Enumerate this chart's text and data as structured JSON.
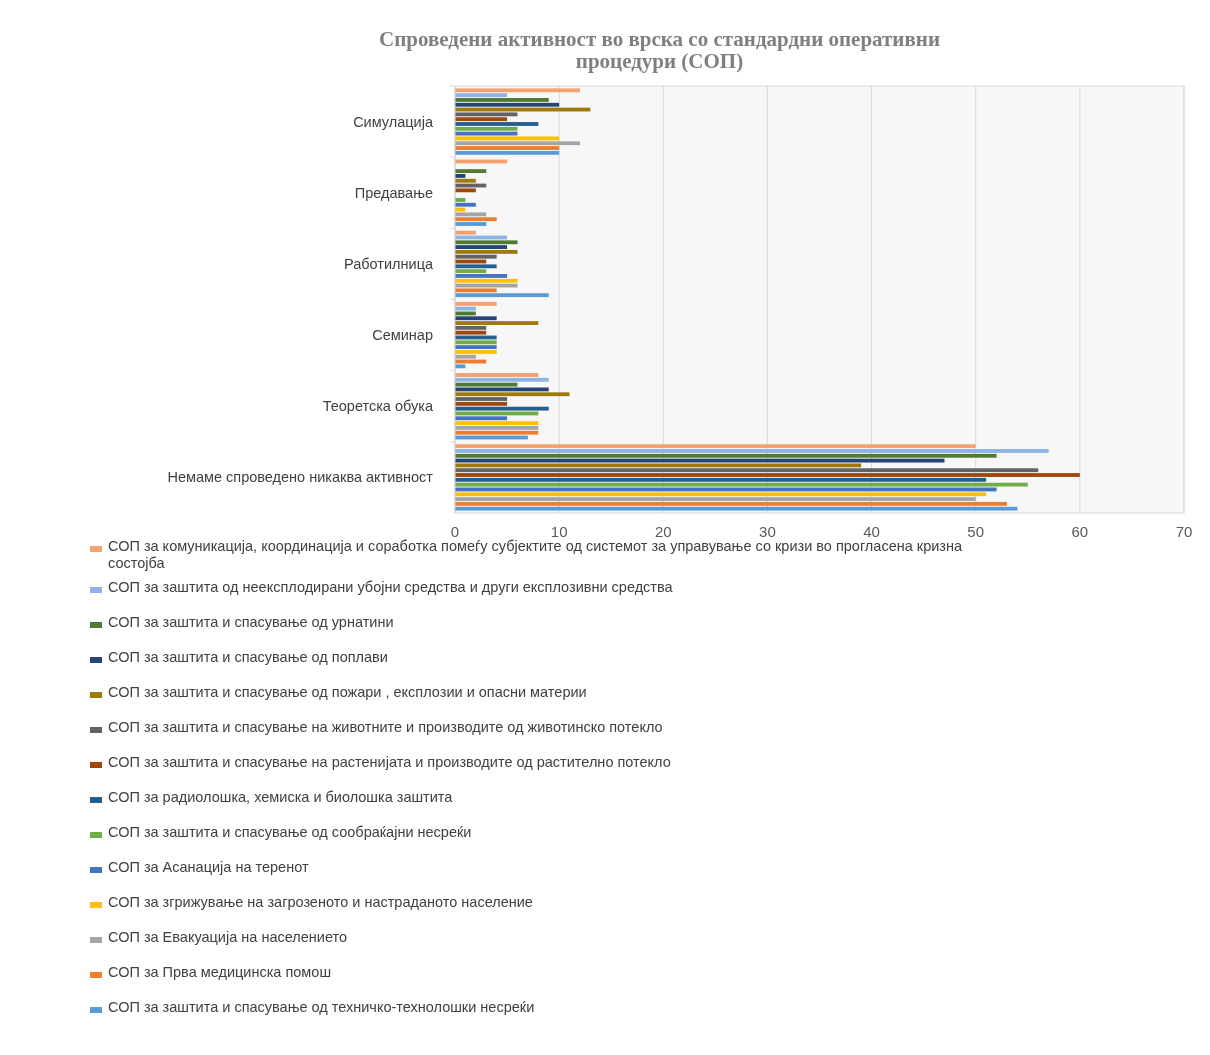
{
  "chart_data": {
    "type": "bar",
    "orientation": "horizontal",
    "title": "Спроведени активност во врска со стандардни оперативни процедури (СОП)",
    "categories": [
      "Симулација",
      "Предавање",
      "Работилница",
      "Семинар",
      "Теоретска обука",
      "Немаме спроведено никаква активност"
    ],
    "series": [
      {
        "name": "СОП за комуникација, координација и соработка помеѓу субјектите од системот за управување со кризи во прогласена кризна состојба",
        "color": "#f4a070",
        "values": [
          12,
          5,
          2,
          4,
          8,
          50
        ]
      },
      {
        "name": "СОП за заштита од неексплодирани убојни средства и други експлозивни средства",
        "color": "#8db4e2",
        "values": [
          5,
          0,
          5,
          2,
          9,
          57
        ]
      },
      {
        "name": "СОП за заштита и спасување од урнатини",
        "color": "#4e7a32",
        "values": [
          9,
          3,
          6,
          2,
          6,
          52
        ]
      },
      {
        "name": "СОП за заштита и спасување од поплави",
        "color": "#264478",
        "values": [
          10,
          1,
          5,
          4,
          9,
          47
        ]
      },
      {
        "name": "СОП за заштита и спасување од пожари , експлозии и опасни материи",
        "color": "#9e7a0c",
        "values": [
          13,
          2,
          6,
          8,
          11,
          39
        ]
      },
      {
        "name": "СОП за заштита и спасување на животните и производите од животинско потекло",
        "color": "#636363",
        "values": [
          6,
          3,
          4,
          3,
          5,
          56
        ]
      },
      {
        "name": "СОП за заштита и спасување на растенијата и производите од растително потекло",
        "color": "#9e480e",
        "values": [
          5,
          2,
          3,
          3,
          5,
          60
        ]
      },
      {
        "name": "СОП за радиолошка, хемиска и биолошка заштита",
        "color": "#255e91",
        "values": [
          8,
          0,
          4,
          4,
          9,
          51
        ]
      },
      {
        "name": "СОП за заштита и спасување од сообраќајни несреќи",
        "color": "#70ad47",
        "values": [
          6,
          1,
          3,
          4,
          8,
          55
        ]
      },
      {
        "name": "СОП за Асанација на теренот",
        "color": "#4472c4",
        "values": [
          6,
          2,
          5,
          4,
          5,
          52
        ]
      },
      {
        "name": "СОП за згрижување на загрозеното и настраданото население",
        "color": "#ffc000",
        "values": [
          10,
          1,
          6,
          4,
          8,
          51
        ]
      },
      {
        "name": "СОП за Евакуација на населението",
        "color": "#a5a5a5",
        "values": [
          12,
          3,
          6,
          2,
          8,
          50
        ]
      },
      {
        "name": "СОП за Прва медицинска помош",
        "color": "#ed7d31",
        "values": [
          10,
          4,
          4,
          3,
          8,
          53
        ]
      },
      {
        "name": "СОП за заштита и спасување од техничко-технолошки несреќи",
        "color": "#5b9bd5",
        "values": [
          10,
          3,
          9,
          1,
          7,
          54
        ]
      }
    ],
    "xlim": [
      0,
      70
    ],
    "xticks": [
      0,
      10,
      20,
      30,
      40,
      50,
      60,
      70
    ],
    "grid": "x",
    "legend": "bottom"
  }
}
